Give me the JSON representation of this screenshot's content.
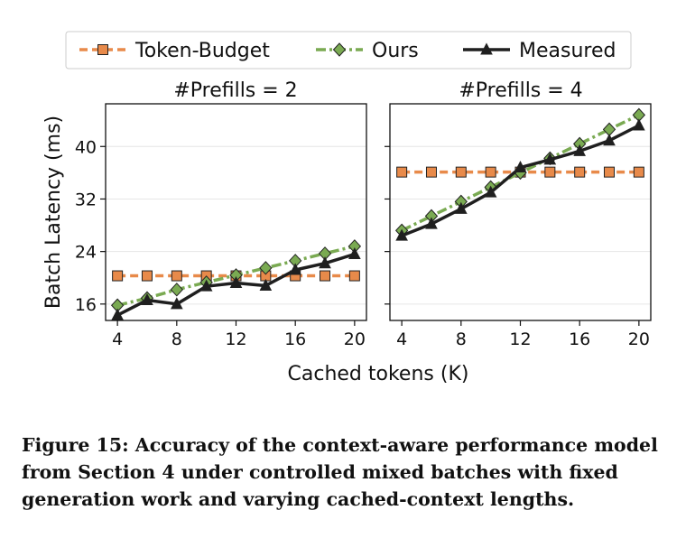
{
  "legend": {
    "entries": [
      {
        "name": "Token-Budget",
        "color": "#e88a4a",
        "marker": "square",
        "dash": "dashed"
      },
      {
        "name": "Ours",
        "color": "#7aaa52",
        "marker": "diamond",
        "dash": "dashdot"
      },
      {
        "name": "Measured",
        "color": "#1f1f1f",
        "marker": "triangle",
        "dash": "solid"
      }
    ]
  },
  "chart_data": [
    {
      "type": "line",
      "title": "#Prefills = 2",
      "xlabel": "Cached tokens (K)",
      "ylabel": "Batch Latency (ms)",
      "x": [
        4,
        6,
        8,
        10,
        12,
        14,
        16,
        18,
        20
      ],
      "xticks": [
        4,
        8,
        12,
        16,
        20
      ],
      "yticks": [
        16,
        24,
        32,
        40
      ],
      "xlim": [
        3.2,
        20.8
      ],
      "ylim": [
        13.5,
        46.5
      ],
      "grid": "horizontal",
      "series": [
        {
          "name": "Token-Budget",
          "values": [
            20.3,
            20.3,
            20.3,
            20.3,
            20.3,
            20.3,
            20.3,
            20.3,
            20.3
          ]
        },
        {
          "name": "Ours",
          "values": [
            15.8,
            16.9,
            18.2,
            19.3,
            20.4,
            21.5,
            22.6,
            23.7,
            24.8
          ]
        },
        {
          "name": "Measured",
          "values": [
            14.3,
            16.6,
            16.0,
            18.7,
            19.2,
            18.8,
            21.2,
            22.2,
            23.6
          ]
        }
      ]
    },
    {
      "type": "line",
      "title": "#Prefills = 4",
      "xlabel": "Cached tokens (K)",
      "ylabel": "Batch Latency (ms)",
      "x": [
        4,
        6,
        8,
        10,
        12,
        14,
        16,
        18,
        20
      ],
      "xticks": [
        4,
        8,
        12,
        16,
        20
      ],
      "yticks": [
        16,
        24,
        32,
        40
      ],
      "xlim": [
        3.2,
        20.8
      ],
      "ylim": [
        13.5,
        46.5
      ],
      "grid": "horizontal",
      "series": [
        {
          "name": "Token-Budget",
          "values": [
            36.1,
            36.1,
            36.1,
            36.1,
            36.1,
            36.1,
            36.1,
            36.1,
            36.1
          ]
        },
        {
          "name": "Ours",
          "values": [
            27.2,
            29.4,
            31.6,
            33.8,
            36.0,
            38.2,
            40.4,
            42.6,
            44.8
          ]
        },
        {
          "name": "Measured",
          "values": [
            26.4,
            28.2,
            30.5,
            33.0,
            36.8,
            38.0,
            39.3,
            40.9,
            43.2
          ]
        }
      ]
    }
  ],
  "caption": "Figure 15: Accuracy of the context-aware performance model from Section 4 under controlled mixed batches with fixed generation work and varying cached-context lengths."
}
